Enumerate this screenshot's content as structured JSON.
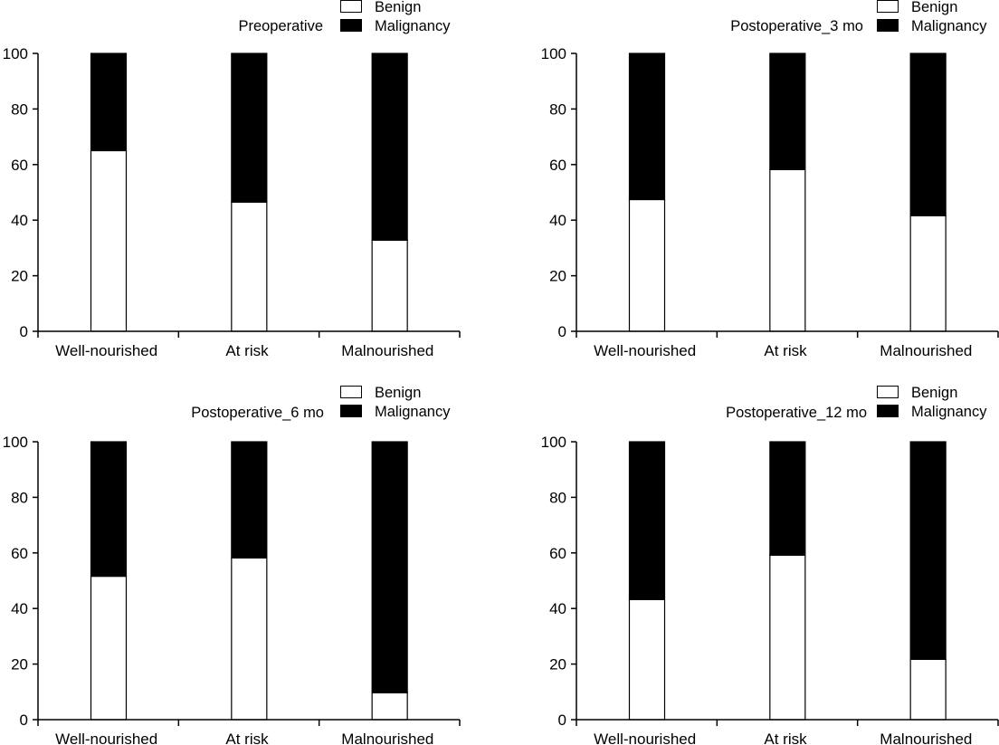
{
  "figure": {
    "panel_count": 4
  },
  "colors": {
    "benign": "#ffffff",
    "malignancy": "#000000",
    "axis": "#000000"
  },
  "chart_data": [
    {
      "type": "bar",
      "stacked": true,
      "title": "Preoperative",
      "xlabel": "",
      "ylabel": "",
      "ylim": [
        0,
        100
      ],
      "yticks": [
        "0",
        "20",
        "40",
        "60",
        "80",
        "100"
      ],
      "categories": [
        "Well-nourished",
        "At risk",
        "Malnourished"
      ],
      "series": [
        {
          "name": "Benign",
          "values": [
            65.0,
            46.5,
            32.8
          ]
        },
        {
          "name": "Malignancy",
          "values": [
            35.0,
            53.5,
            67.2
          ]
        }
      ],
      "legend": {
        "placement": "top-right",
        "entries": [
          "Benign",
          "Malignancy"
        ]
      },
      "grid": false
    },
    {
      "type": "bar",
      "stacked": true,
      "title": "Postoperative_3 mo",
      "xlabel": "",
      "ylabel": "",
      "ylim": [
        0,
        100
      ],
      "yticks": [
        "0",
        "20",
        "40",
        "60",
        "80",
        "100"
      ],
      "categories": [
        "Well-nourished",
        "At risk",
        "Malnourished"
      ],
      "series": [
        {
          "name": "Benign",
          "values": [
            47.4,
            58.2,
            41.6
          ]
        },
        {
          "name": "Malignancy",
          "values": [
            52.6,
            41.8,
            58.4
          ]
        }
      ],
      "legend": {
        "placement": "top-right",
        "entries": [
          "Benign",
          "Malignancy"
        ]
      },
      "grid": false
    },
    {
      "type": "bar",
      "stacked": true,
      "title": "Postoperative_6 mo",
      "xlabel": "",
      "ylabel": "",
      "ylim": [
        0,
        100
      ],
      "yticks": [
        "0",
        "20",
        "40",
        "60",
        "80",
        "100"
      ],
      "categories": [
        "Well-nourished",
        "At risk",
        "Malnourished"
      ],
      "series": [
        {
          "name": "Benign",
          "values": [
            51.6,
            58.2,
            9.7
          ]
        },
        {
          "name": "Malignancy",
          "values": [
            48.4,
            41.8,
            90.3
          ]
        }
      ],
      "legend": {
        "placement": "top-right",
        "entries": [
          "Benign",
          "Malignancy"
        ]
      },
      "grid": false
    },
    {
      "type": "bar",
      "stacked": true,
      "title": "Postoperative_12 mo",
      "xlabel": "",
      "ylabel": "",
      "ylim": [
        0,
        100
      ],
      "yticks": [
        "0",
        "20",
        "40",
        "60",
        "80",
        "100"
      ],
      "categories": [
        "Well-nourished",
        "At risk",
        "Malnourished"
      ],
      "series": [
        {
          "name": "Benign",
          "values": [
            43.2,
            59.2,
            21.7
          ]
        },
        {
          "name": "Malignancy",
          "values": [
            56.8,
            40.8,
            78.3
          ]
        }
      ],
      "legend": {
        "placement": "top-right",
        "entries": [
          "Benign",
          "Malignancy"
        ]
      },
      "grid": false
    }
  ]
}
